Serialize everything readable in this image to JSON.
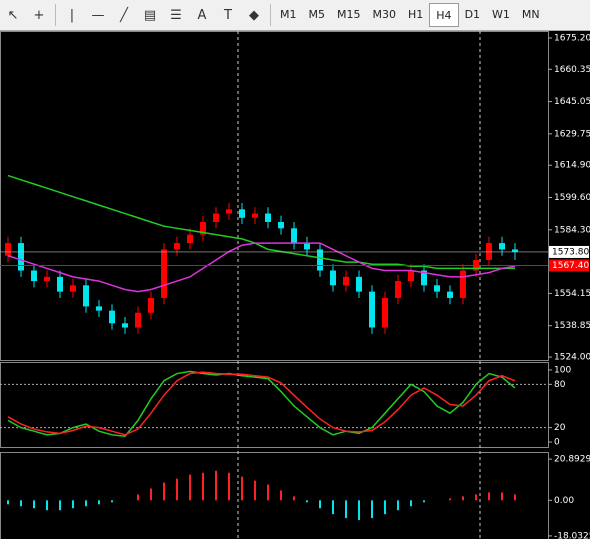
{
  "toolbar": {
    "text_tool": "A",
    "timeframes": [
      "M1",
      "M5",
      "M15",
      "M30",
      "H1",
      "H4",
      "D1",
      "W1",
      "MN"
    ]
  },
  "chart_data": [
    {
      "type": "candlestick",
      "opens": [
        1572,
        1578,
        1565,
        1560,
        1562,
        1555,
        1558,
        1548,
        1546,
        1540,
        1538,
        1545,
        1552,
        1575,
        1578,
        1582,
        1588,
        1592,
        1594,
        1590,
        1592,
        1588,
        1585,
        1578,
        1575,
        1565,
        1558,
        1562,
        1555,
        1538,
        1552,
        1560,
        1565,
        1558,
        1555,
        1552,
        1565,
        1570,
        1578,
        1575
      ],
      "highs": [
        1581,
        1581,
        1568,
        1565,
        1565,
        1561,
        1561,
        1551,
        1549,
        1543,
        1548,
        1555,
        1578,
        1581,
        1585,
        1591,
        1595,
        1597,
        1597,
        1595,
        1595,
        1591,
        1588,
        1581,
        1578,
        1568,
        1565,
        1565,
        1558,
        1555,
        1563,
        1568,
        1568,
        1561,
        1558,
        1568,
        1573,
        1581,
        1581,
        1578
      ],
      "lows": [
        1569,
        1562,
        1557,
        1557,
        1552,
        1552,
        1545,
        1543,
        1537,
        1535,
        1535,
        1542,
        1549,
        1572,
        1575,
        1579,
        1585,
        1589,
        1587,
        1587,
        1585,
        1582,
        1575,
        1572,
        1562,
        1555,
        1555,
        1552,
        1535,
        1535,
        1549,
        1557,
        1555,
        1552,
        1549,
        1549,
        1562,
        1567,
        1572,
        1570
      ],
      "closes": [
        1578,
        1565,
        1560,
        1562,
        1555,
        1558,
        1548,
        1546,
        1540,
        1538,
        1545,
        1552,
        1575,
        1578,
        1582,
        1588,
        1592,
        1594,
        1590,
        1592,
        1588,
        1585,
        1578,
        1575,
        1565,
        1558,
        1562,
        1555,
        1538,
        1552,
        1560,
        1565,
        1558,
        1555,
        1552,
        1565,
        1570,
        1578,
        1575,
        1573.8
      ],
      "up_color": "#ff0000",
      "down_color": "#00e5ee",
      "series": [
        {
          "color": "#22cc22",
          "values": [
            1610,
            1608,
            1606,
            1604,
            1602,
            1600,
            1598,
            1596,
            1594,
            1592,
            1590,
            1588,
            1586,
            1585,
            1584,
            1583,
            1582,
            1581,
            1580,
            1578,
            1575,
            1574,
            1573,
            1572,
            1571,
            1570,
            1569,
            1569,
            1568,
            1568,
            1568,
            1567,
            1567,
            1566,
            1566,
            1566,
            1566,
            1566,
            1566,
            1566
          ]
        },
        {
          "color": "#dd33dd",
          "values": [
            1572,
            1570,
            1568,
            1566,
            1564,
            1562,
            1561,
            1560,
            1558,
            1556,
            1555,
            1556,
            1558,
            1560,
            1562,
            1566,
            1570,
            1574,
            1577,
            1578,
            1578,
            1578,
            1578,
            1578,
            1578,
            1575,
            1572,
            1569,
            1566,
            1565,
            1565,
            1565,
            1564,
            1563,
            1562,
            1562,
            1563,
            1564,
            1566,
            1567
          ]
        }
      ],
      "ylim": [
        1522.6,
        1678.5
      ],
      "yticks": [
        {
          "value": 1675.2,
          "label": "1675.20"
        },
        1660.35,
        1645.05,
        1629.75,
        {
          "value": 1614.9,
          "label": "1614.90"
        },
        {
          "value": 1599.6,
          "label": "1599.60"
        },
        {
          "value": 1584.3,
          "label": "1584.30"
        },
        1554.15,
        1538.85,
        {
          "value": 1524,
          "label": "1524.00"
        }
      ],
      "current_price": {
        "value": 1573.8,
        "label": "1573.80"
      },
      "bid_line": {
        "value": 1567.4,
        "label": "1567.40"
      }
    },
    {
      "type": "line",
      "series": [
        {
          "color": "#22cc22",
          "values": [
            30,
            20,
            15,
            10,
            12,
            20,
            25,
            15,
            10,
            8,
            30,
            60,
            85,
            95,
            98,
            95,
            93,
            95,
            92,
            90,
            88,
            70,
            50,
            35,
            20,
            10,
            15,
            12,
            20,
            40,
            60,
            80,
            70,
            50,
            40,
            55,
            80,
            95,
            90,
            75
          ]
        },
        {
          "color": "#ff2222",
          "values": [
            35,
            25,
            18,
            14,
            12,
            16,
            22,
            20,
            15,
            10,
            18,
            40,
            65,
            85,
            95,
            97,
            95,
            94,
            94,
            92,
            90,
            82,
            65,
            48,
            32,
            20,
            15,
            14,
            16,
            28,
            45,
            65,
            75,
            65,
            52,
            50,
            65,
            85,
            92,
            85
          ]
        }
      ],
      "ylim": [
        -6.9,
        111
      ],
      "yticks": [
        100,
        80,
        20,
        0
      ],
      "levels": [
        80,
        20
      ]
    },
    {
      "type": "histogram",
      "values": [
        -2,
        -3,
        -4,
        -5,
        -5,
        -4,
        -3,
        -2,
        -1,
        0,
        3,
        6,
        9,
        11,
        13,
        14,
        15,
        14,
        12,
        10,
        8,
        5,
        2,
        -1,
        -4,
        -7,
        -9,
        -10,
        -9,
        -7,
        -5,
        -3,
        -1,
        0,
        1,
        2,
        3,
        4,
        4,
        3
      ],
      "up_color": "#ff2222",
      "down_color": "#00e5ee",
      "ylim": [
        -19.6,
        24.5
      ],
      "yticks": [
        20.8929,
        {
          "value": 0,
          "label": "0.00"
        },
        -18.0325
      ]
    }
  ]
}
